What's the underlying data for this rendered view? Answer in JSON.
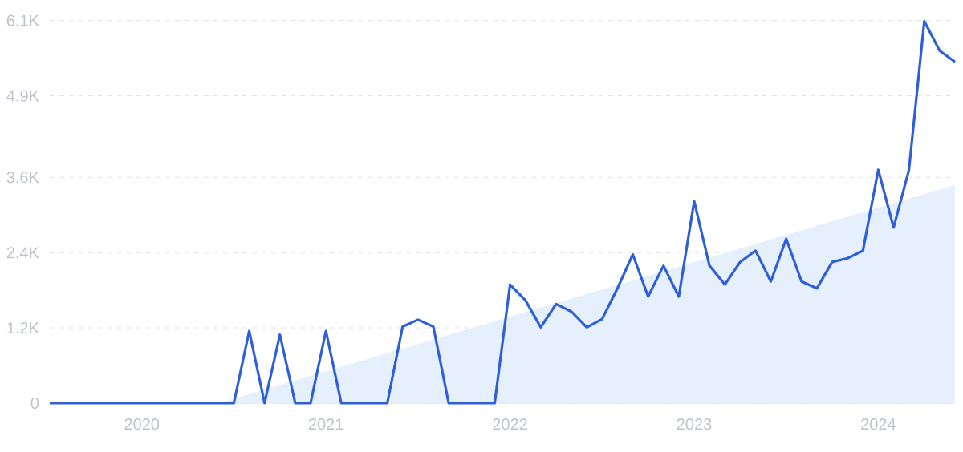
{
  "chart_data": {
    "type": "line",
    "x": [
      "2019-07",
      "2019-08",
      "2019-09",
      "2019-10",
      "2019-11",
      "2019-12",
      "2020-01",
      "2020-02",
      "2020-03",
      "2020-04",
      "2020-05",
      "2020-06",
      "2020-07",
      "2020-08",
      "2020-09",
      "2020-10",
      "2020-11",
      "2020-12",
      "2021-01",
      "2021-02",
      "2021-03",
      "2021-04",
      "2021-05",
      "2021-06",
      "2021-07",
      "2021-08",
      "2021-09",
      "2021-10",
      "2021-11",
      "2021-12",
      "2022-01",
      "2022-02",
      "2022-03",
      "2022-04",
      "2022-05",
      "2022-06",
      "2022-07",
      "2022-08",
      "2022-09",
      "2022-10",
      "2022-11",
      "2022-12",
      "2023-01",
      "2023-02",
      "2023-03",
      "2023-04",
      "2023-05",
      "2023-06",
      "2023-07",
      "2023-08",
      "2023-09",
      "2023-10",
      "2023-11",
      "2023-12",
      "2024-01",
      "2024-02",
      "2024-03",
      "2024-04",
      "2024-05",
      "2024-06"
    ],
    "series": [
      {
        "type": "area",
        "color": "#e6effc",
        "x": [
          "2020-06",
          "2024-06"
        ],
        "values": [
          0,
          3480
        ]
      },
      {
        "color": "#2f5fd6",
        "values": [
          0,
          0,
          0,
          0,
          0,
          0,
          0,
          0,
          0,
          0,
          0,
          0,
          0,
          1150,
          0,
          1090,
          0,
          0,
          1150,
          0,
          0,
          0,
          0,
          1220,
          1330,
          1220,
          0,
          0,
          0,
          0,
          1890,
          1640,
          1210,
          1580,
          1460,
          1210,
          1340,
          1830,
          2370,
          1700,
          2190,
          1700,
          3220,
          2190,
          1890,
          2250,
          2430,
          1940,
          2620,
          1940,
          1830,
          2250,
          2310,
          2430,
          3720,
          2800,
          3720,
          6090,
          5620,
          5440
        ]
      }
    ],
    "xlim": [
      "2019-07",
      "2024-06"
    ],
    "xticks": [
      "2020",
      "2021",
      "2022",
      "2023",
      "2024"
    ],
    "ylim": [
      0,
      6100
    ],
    "yticks": [
      0,
      {
        "value": 1200,
        "label": "1.2K"
      },
      {
        "value": 2400,
        "label": "2.4K"
      },
      {
        "value": 3600,
        "label": "3.6K"
      },
      {
        "value": 4900,
        "label": "4.9K"
      },
      {
        "value": 6100,
        "label": "6.1K"
      }
    ],
    "grid": "y"
  }
}
